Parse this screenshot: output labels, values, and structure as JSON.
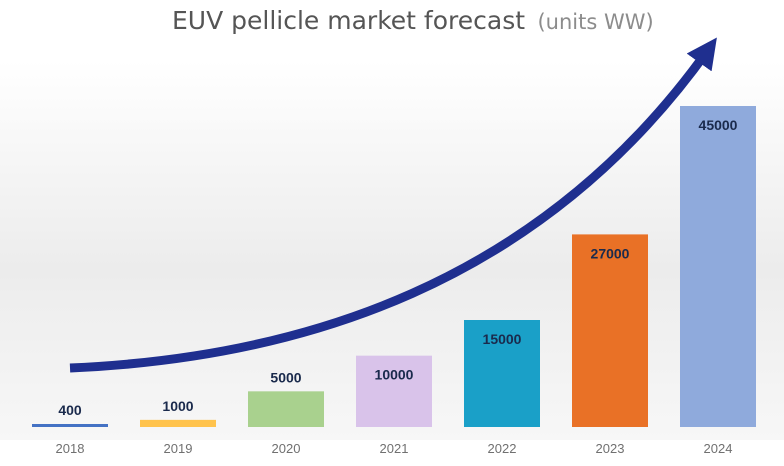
{
  "chart_data": {
    "type": "bar",
    "title": "EUV pellicle market forecast",
    "title_unit": "(units WW)",
    "categories": [
      "2018",
      "2019",
      "2020",
      "2021",
      "2022",
      "2023",
      "2024"
    ],
    "values": [
      400,
      1000,
      5000,
      10000,
      15000,
      27000,
      45000
    ],
    "value_labels": [
      "400",
      "1000",
      "5000",
      "10000",
      "15000",
      "27000",
      "45000"
    ],
    "colors": [
      "#4472c4",
      "#ffc34d",
      "#a9d18e",
      "#d9c3ea",
      "#1aa0c8",
      "#e97126",
      "#8faadc"
    ],
    "ylim": [
      0,
      45000
    ],
    "grid": false,
    "legend": "none",
    "trend_arrow": {
      "color": "#1f2f8f",
      "direction": "up-right"
    }
  }
}
